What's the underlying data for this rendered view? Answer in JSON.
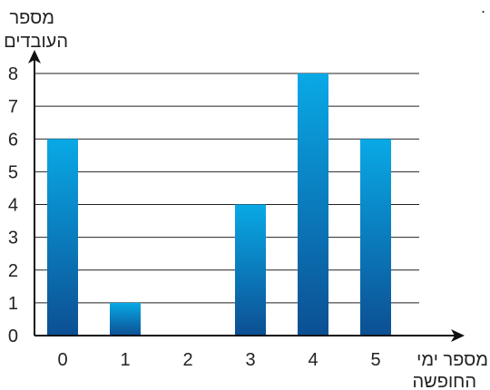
{
  "stray_mark": ".",
  "chart_data": {
    "type": "bar",
    "categories": [
      "0",
      "1",
      "2",
      "3",
      "4",
      "5"
    ],
    "values": [
      6,
      1,
      0,
      4,
      8,
      6
    ],
    "ylabel_lines": [
      "מספר",
      "העובדים"
    ],
    "xlabel_lines": [
      "מספר ימי",
      "החופשה"
    ],
    "ylim": [
      0,
      8
    ],
    "yticks": [
      "0",
      "1",
      "2",
      "3",
      "4",
      "5",
      "6",
      "7",
      "8"
    ],
    "grid": true,
    "legend": "none",
    "colors": {
      "bar_top": "#09a9e6",
      "bar_bottom": "#0c4f93",
      "grid": "#222222",
      "axis": "#111111"
    }
  }
}
